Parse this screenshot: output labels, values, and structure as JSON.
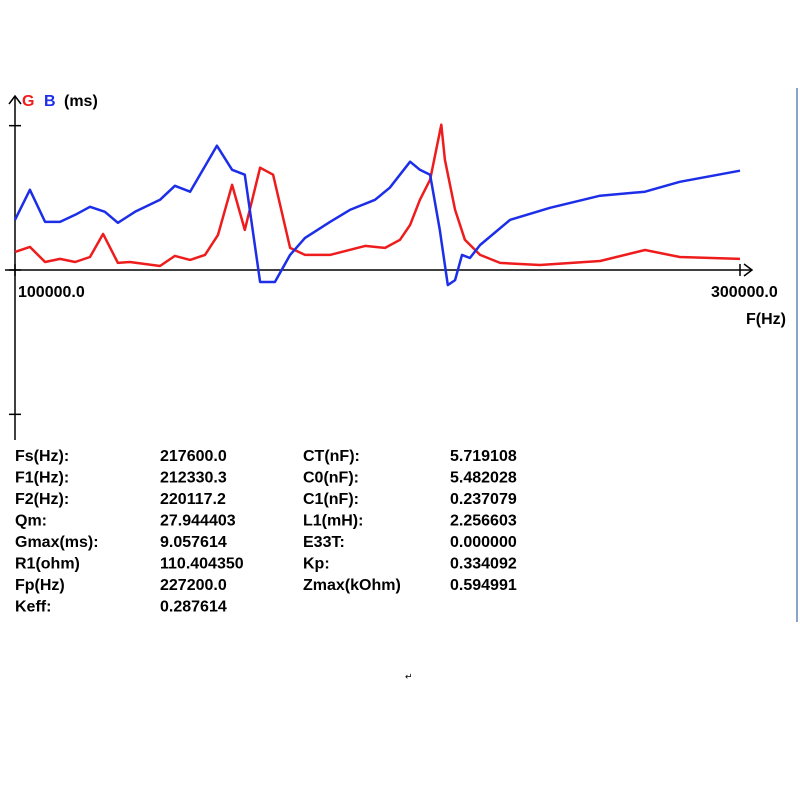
{
  "chart_data": {
    "type": "line",
    "y_label": "(ms)",
    "x_label": "F(Hz)",
    "xlim": [
      100000,
      300000
    ],
    "xticks": [
      {
        "value": 100000,
        "label": "100000.0"
      },
      {
        "value": 300000,
        "label": "300000.0"
      }
    ],
    "ylim": [
      -10.6,
      10.6
    ],
    "yticks": [
      -9,
      0,
      9
    ],
    "series": [
      {
        "name": "G",
        "color": "#ee1c1c",
        "x": [
          100000,
          104100,
          108300,
          112400,
          116600,
          120700,
          124300,
          128400,
          131700,
          140000,
          144100,
          148300,
          152400,
          156000,
          159900,
          163400,
          167600,
          171200,
          175900,
          180000,
          186900,
          196600,
          202100,
          206200,
          209000,
          211700,
          214500,
          217600,
          218600,
          221400,
          224100,
          228300,
          233800,
          244800,
          261400,
          273800,
          283400,
          300000
        ],
        "values": [
          1.13,
          1.44,
          0.5,
          0.69,
          0.5,
          0.81,
          2.25,
          0.44,
          0.5,
          0.25,
          0.88,
          0.63,
          0.94,
          2.19,
          5.31,
          2.5,
          6.38,
          5.94,
          1.38,
          0.94,
          0.94,
          1.5,
          1.38,
          1.88,
          2.81,
          4.38,
          5.63,
          9.06,
          6.88,
          3.75,
          1.88,
          0.94,
          0.44,
          0.31,
          0.56,
          1.25,
          0.81,
          0.69
        ]
      },
      {
        "name": "B",
        "color": "#1c2ee8",
        "x": [
          100000,
          104100,
          108300,
          112400,
          116600,
          120700,
          124800,
          128400,
          133100,
          140000,
          144100,
          148300,
          155700,
          159900,
          163400,
          167600,
          171700,
          175900,
          180000,
          186900,
          192400,
          199300,
          203400,
          209000,
          211700,
          214500,
          217200,
          219400,
          221400,
          223300,
          225500,
          228300,
          236600,
          247600,
          261400,
          273800,
          283400,
          300000
        ],
        "values": [
          3.13,
          5.0,
          3.0,
          3.0,
          3.44,
          3.94,
          3.63,
          2.94,
          3.63,
          4.38,
          5.25,
          4.88,
          7.75,
          6.25,
          5.94,
          -0.75,
          -0.75,
          0.94,
          2.0,
          3.0,
          3.75,
          4.38,
          5.13,
          6.75,
          6.25,
          5.94,
          2.5,
          -0.94,
          -0.63,
          0.94,
          0.75,
          1.56,
          3.13,
          3.88,
          4.63,
          4.88,
          5.5,
          6.19
        ]
      }
    ]
  },
  "params": {
    "rows": [
      [
        "Fs(Hz):",
        "217600.0",
        "CT(nF):",
        "5.719108"
      ],
      [
        "F1(Hz):",
        "212330.3",
        "C0(nF):",
        "5.482028"
      ],
      [
        "F2(Hz):",
        "220117.2",
        "C1(nF):",
        "0.237079"
      ],
      [
        "Qm:",
        "27.944403",
        "L1(mH):",
        "2.256603"
      ],
      [
        "Gmax(ms):",
        "9.057614",
        "E33T:",
        "0.000000"
      ],
      [
        "R1(ohm)",
        "110.404350",
        "Kp:",
        "0.334092"
      ],
      [
        "Fp(Hz)",
        "227200.0",
        "Zmax(kOhm)",
        "0.594991"
      ],
      [
        "Keff:",
        "0.287614"
      ]
    ]
  },
  "return_mark": "↵"
}
